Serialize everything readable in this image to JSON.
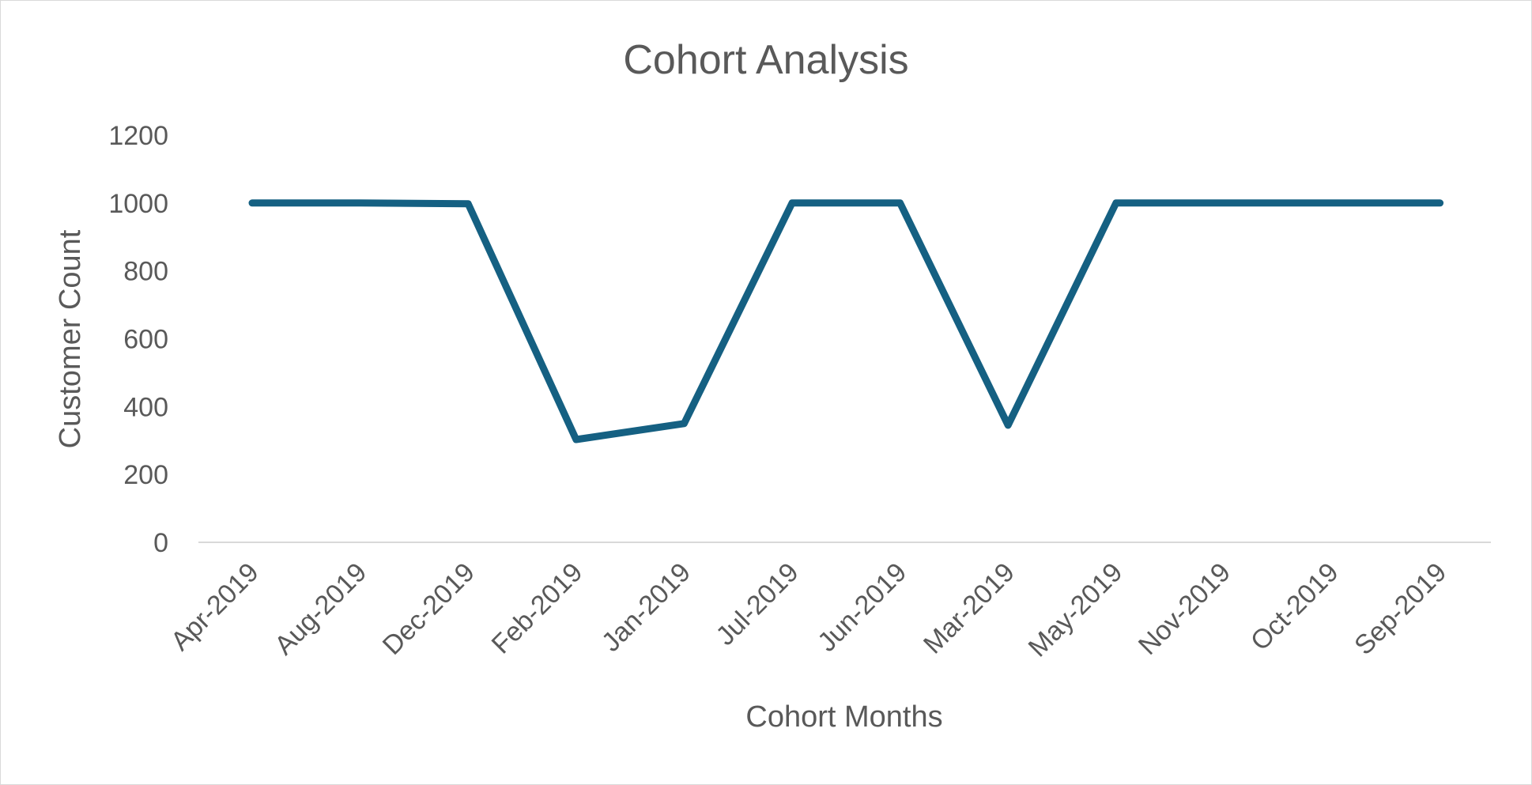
{
  "chart_data": {
    "type": "line",
    "title": "Cohort Analysis",
    "xlabel": "Cohort Months",
    "ylabel": "Customer Count",
    "categories": [
      "Apr-2019",
      "Aug-2019",
      "Dec-2019",
      "Feb-2019",
      "Jan-2019",
      "Jul-2019",
      "Jun-2019",
      "Mar-2019",
      "May-2019",
      "Nov-2019",
      "Oct-2019",
      "Sep-2019"
    ],
    "series": [
      {
        "values": [
          1000,
          1000,
          998,
          303,
          350,
          1000,
          1000,
          345,
          1000,
          1000,
          1000,
          1000
        ],
        "color": "#156082"
      }
    ],
    "yticks": [
      "0",
      "200",
      "400",
      "600",
      "800",
      "1000",
      "1200"
    ],
    "ylim": [
      0,
      1200
    ],
    "grid": false,
    "legend": "none"
  }
}
